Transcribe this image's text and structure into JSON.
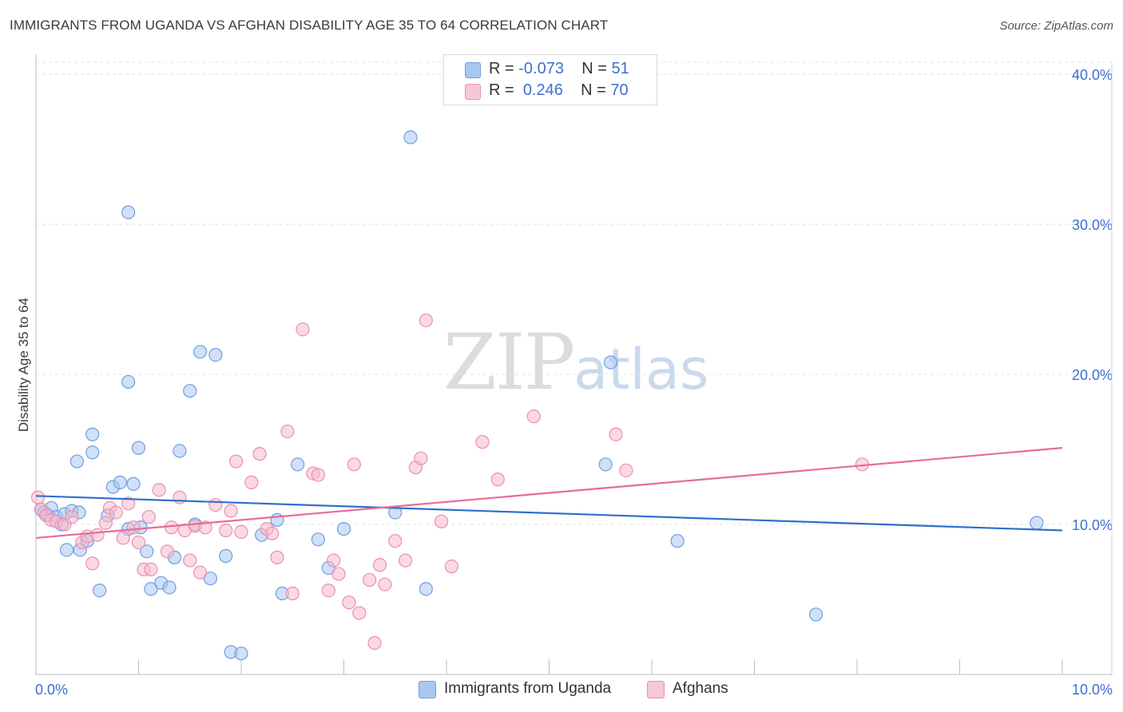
{
  "header": {
    "title": "IMMIGRANTS FROM UGANDA VS AFGHAN DISABILITY AGE 35 TO 64 CORRELATION CHART",
    "source": "Source: ZipAtlas.com"
  },
  "watermark": {
    "zip": "ZIP",
    "atlas": "atlas"
  },
  "legend": {
    "rows": [
      {
        "r_label": "R =",
        "r_value": "-0.073",
        "n_label": "N =",
        "n_value": "51",
        "color": "#a9c6f0"
      },
      {
        "r_label": "R =",
        "r_value": "0.246",
        "n_label": "N =",
        "n_value": "70",
        "color": "#f6b9cc"
      }
    ]
  },
  "bottom_legend": {
    "series1": "Immigrants from Uganda",
    "series2": "Afghans"
  },
  "colors": {
    "blue_fill": "#a9c6f0",
    "blue_stroke": "#6f9ee0",
    "blue_line": "#2f6fcc",
    "pink_fill": "#f6b9cc",
    "pink_stroke": "#ec8eae",
    "pink_line": "#e86b98",
    "tick_label": "#3d6fd1",
    "grid": "#e2e2e2"
  },
  "chart_data": {
    "type": "scatter",
    "title": "IMMIGRANTS FROM UGANDA VS AFGHAN DISABILITY AGE 35 TO 64 CORRELATION CHART",
    "xlabel": "",
    "ylabel": "Disability Age 35 to 64",
    "xlim": [
      0,
      10
    ],
    "ylim": [
      0,
      40.8
    ],
    "x_tick_labels": [
      "0.0%",
      "10.0%"
    ],
    "y_ticks": [
      10,
      20,
      30,
      40
    ],
    "y_tick_labels": [
      "10.0%",
      "20.0%",
      "30.0%",
      "40.0%"
    ],
    "grid": true,
    "legend_position": "top-center",
    "series": [
      {
        "name": "Immigrants from Uganda",
        "color": "#a9c6f0",
        "trend": {
          "x": [
            0,
            10
          ],
          "y": [
            11.9,
            9.6
          ]
        },
        "points": [
          [
            0.05,
            11.0
          ],
          [
            0.08,
            10.8
          ],
          [
            0.12,
            10.6
          ],
          [
            0.15,
            11.1
          ],
          [
            0.2,
            10.5
          ],
          [
            0.25,
            10.0
          ],
          [
            0.28,
            10.7
          ],
          [
            0.35,
            10.9
          ],
          [
            0.42,
            10.8
          ],
          [
            0.3,
            8.3
          ],
          [
            0.43,
            8.3
          ],
          [
            0.5,
            8.9
          ],
          [
            0.62,
            5.6
          ],
          [
            0.7,
            10.6
          ],
          [
            0.75,
            12.5
          ],
          [
            0.82,
            12.8
          ],
          [
            0.9,
            9.7
          ],
          [
            0.95,
            12.7
          ],
          [
            1.02,
            9.8
          ],
          [
            1.08,
            8.2
          ],
          [
            1.12,
            5.7
          ],
          [
            1.22,
            6.1
          ],
          [
            1.3,
            5.8
          ],
          [
            1.35,
            7.8
          ],
          [
            1.4,
            14.9
          ],
          [
            1.5,
            18.9
          ],
          [
            1.55,
            10.0
          ],
          [
            1.9,
            1.5
          ],
          [
            2.0,
            1.4
          ],
          [
            1.85,
            7.9
          ],
          [
            1.7,
            6.4
          ],
          [
            2.2,
            9.3
          ],
          [
            2.35,
            10.3
          ],
          [
            2.4,
            5.4
          ],
          [
            2.55,
            14.0
          ],
          [
            2.75,
            9.0
          ],
          [
            2.85,
            7.1
          ],
          [
            3.0,
            9.7
          ],
          [
            3.5,
            10.8
          ],
          [
            3.8,
            5.7
          ],
          [
            3.65,
            35.8
          ],
          [
            0.9,
            30.8
          ],
          [
            1.6,
            21.5
          ],
          [
            1.75,
            21.3
          ],
          [
            0.9,
            19.5
          ],
          [
            0.55,
            16.0
          ],
          [
            0.55,
            14.8
          ],
          [
            0.4,
            14.2
          ],
          [
            1.0,
            15.1
          ],
          [
            5.6,
            20.8
          ],
          [
            5.55,
            14.0
          ],
          [
            6.25,
            8.9
          ],
          [
            7.6,
            4.0
          ],
          [
            9.75,
            10.1
          ]
        ]
      },
      {
        "name": "Afghans",
        "color": "#f6b9cc",
        "trend": {
          "x": [
            0,
            10
          ],
          "y": [
            9.1,
            15.1
          ]
        },
        "points": [
          [
            0.02,
            11.8
          ],
          [
            0.05,
            11.0
          ],
          [
            0.1,
            10.6
          ],
          [
            0.15,
            10.3
          ],
          [
            0.2,
            10.2
          ],
          [
            0.28,
            10.0
          ],
          [
            0.35,
            10.5
          ],
          [
            0.45,
            8.8
          ],
          [
            0.5,
            9.2
          ],
          [
            0.55,
            7.4
          ],
          [
            0.6,
            9.3
          ],
          [
            0.68,
            10.1
          ],
          [
            0.72,
            11.1
          ],
          [
            0.78,
            10.8
          ],
          [
            0.85,
            9.1
          ],
          [
            0.9,
            11.4
          ],
          [
            0.95,
            9.8
          ],
          [
            1.0,
            8.8
          ],
          [
            1.05,
            7.0
          ],
          [
            1.1,
            10.5
          ],
          [
            1.12,
            7.0
          ],
          [
            1.2,
            12.3
          ],
          [
            1.28,
            8.2
          ],
          [
            1.32,
            9.8
          ],
          [
            1.4,
            11.8
          ],
          [
            1.45,
            9.6
          ],
          [
            1.5,
            7.6
          ],
          [
            1.55,
            9.9
          ],
          [
            1.6,
            6.8
          ],
          [
            1.65,
            9.8
          ],
          [
            1.75,
            11.3
          ],
          [
            1.85,
            9.6
          ],
          [
            1.9,
            10.9
          ],
          [
            1.95,
            14.2
          ],
          [
            2.0,
            9.5
          ],
          [
            2.1,
            12.8
          ],
          [
            2.18,
            14.7
          ],
          [
            2.25,
            9.7
          ],
          [
            2.3,
            9.4
          ],
          [
            2.35,
            7.8
          ],
          [
            2.45,
            16.2
          ],
          [
            2.5,
            5.4
          ],
          [
            2.6,
            23.0
          ],
          [
            2.7,
            13.4
          ],
          [
            2.75,
            13.3
          ],
          [
            2.85,
            5.6
          ],
          [
            2.9,
            7.6
          ],
          [
            2.95,
            6.7
          ],
          [
            3.05,
            4.8
          ],
          [
            3.1,
            14.0
          ],
          [
            3.15,
            4.1
          ],
          [
            3.25,
            6.3
          ],
          [
            3.3,
            2.1
          ],
          [
            3.35,
            7.3
          ],
          [
            3.4,
            6.0
          ],
          [
            3.5,
            8.9
          ],
          [
            3.6,
            7.6
          ],
          [
            3.7,
            13.8
          ],
          [
            3.75,
            14.4
          ],
          [
            3.8,
            23.6
          ],
          [
            3.95,
            10.2
          ],
          [
            4.05,
            7.2
          ],
          [
            4.35,
            15.5
          ],
          [
            4.5,
            13.0
          ],
          [
            4.85,
            17.2
          ],
          [
            5.65,
            16.0
          ],
          [
            5.75,
            13.6
          ],
          [
            8.05,
            14.0
          ]
        ]
      }
    ]
  }
}
